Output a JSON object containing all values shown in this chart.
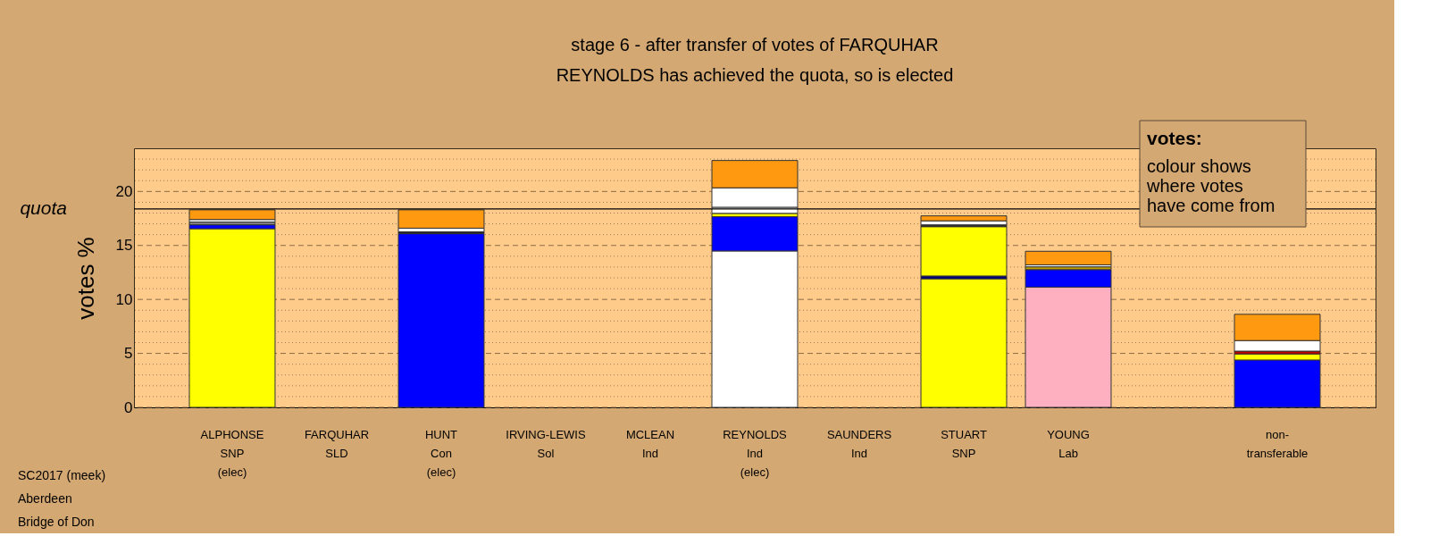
{
  "chart_data": {
    "type": "bar",
    "stacked": true,
    "title": "stage 6 - after transfer of votes of FARQUHAR",
    "subtitle": "REYNOLDS has achieved the quota, so is elected",
    "ylabel": "votes %",
    "categories": [
      "ALPHONSE\nSNP\n(elec)",
      "FARQUHAR\nSLD",
      "HUNT\nCon\n(elec)",
      "IRVING-LEWIS\nSol",
      "MCLEAN\nInd",
      "REYNOLDS\nInd\n(elec)",
      "SAUNDERS\nInd",
      "STUART\nSNP",
      "YOUNG\nLab",
      null,
      "non-\ntransferable"
    ],
    "series": [
      {
        "colors": [
          "#ffff00",
          null,
          "#0000ff",
          null,
          null,
          "#ffffff",
          null,
          "#ffff00",
          "#ffb0c0",
          null,
          "#0000ff"
        ],
        "values": [
          16.55,
          null,
          16.09,
          null,
          null,
          14.49,
          null,
          11.91,
          11.14,
          null,
          4.39
        ]
      },
      {
        "colors": [
          "#0000ff",
          null,
          "#202020",
          null,
          null,
          "#0000ff",
          null,
          "#000080",
          "#0000ff",
          null,
          "#ffff00"
        ],
        "values": [
          0.36,
          null,
          0.18,
          null,
          null,
          3.17,
          null,
          0.26,
          1.62,
          null,
          0.56
        ]
      },
      {
        "colors": [
          "#808080",
          null,
          "#ffffff",
          null,
          null,
          "#ffff00",
          null,
          "#ffff00",
          "#c0a000",
          null,
          "#c00000"
        ],
        "values": [
          0.26,
          null,
          0.33,
          null,
          null,
          0.31,
          null,
          4.57,
          0.26,
          null,
          0.26
        ]
      },
      {
        "colors": [
          "#ffffff",
          null,
          null,
          null,
          null,
          "#ffffff",
          null,
          "#303030",
          "#ffffff",
          null,
          "#ffffff"
        ],
        "values": [
          0.23,
          null,
          null,
          null,
          null,
          0.57,
          null,
          0.17,
          0.18,
          null,
          0.98
        ]
      },
      {
        "colors": [
          null,
          null,
          null,
          null,
          null,
          "#ffffff",
          null,
          "#ffffff",
          null,
          null,
          null
        ],
        "values": [
          null,
          null,
          null,
          null,
          null,
          1.8,
          null,
          0.37,
          null,
          null,
          null
        ]
      },
      {
        "colors": [
          "#ff9910",
          null,
          "#ff9910",
          null,
          null,
          "#ff9910",
          null,
          "#ff9910",
          "#ff9910",
          null,
          "#ff9910"
        ],
        "values": [
          0.9,
          null,
          1.7,
          null,
          null,
          2.53,
          null,
          0.46,
          1.26,
          null,
          2.43
        ]
      }
    ],
    "ylim": [
      0,
      24
    ],
    "yticks": [
      0,
      {
        "value": 1,
        "label": null
      },
      {
        "value": 2,
        "label": null
      },
      {
        "value": 3,
        "label": null
      },
      {
        "value": 4,
        "label": null
      },
      5,
      {
        "value": 6,
        "label": null
      },
      {
        "value": 7,
        "label": null
      },
      {
        "value": 8,
        "label": null
      },
      {
        "value": 9,
        "label": null
      },
      10,
      {
        "value": 11,
        "label": null
      },
      {
        "value": 12,
        "label": null
      },
      {
        "value": 13,
        "label": null
      },
      {
        "value": 14,
        "label": null
      },
      15,
      {
        "value": 16,
        "label": null
      },
      {
        "value": 17,
        "label": null
      },
      {
        "value": 18,
        "label": null
      },
      {
        "value": 19,
        "label": null
      },
      20,
      {
        "value": 21,
        "label": null
      },
      {
        "value": 22,
        "label": null
      },
      {
        "value": 23,
        "label": null
      }
    ],
    "grid": "y",
    "ref_lines": [
      {
        "axis": "y",
        "value": 18.38,
        "label": "quota"
      }
    ],
    "annotations": [
      "votes:",
      "colour shows\nwhere votes\nhave come from",
      "SC2017 (meek)",
      "Aberdeen",
      "Bridge of Don"
    ]
  }
}
